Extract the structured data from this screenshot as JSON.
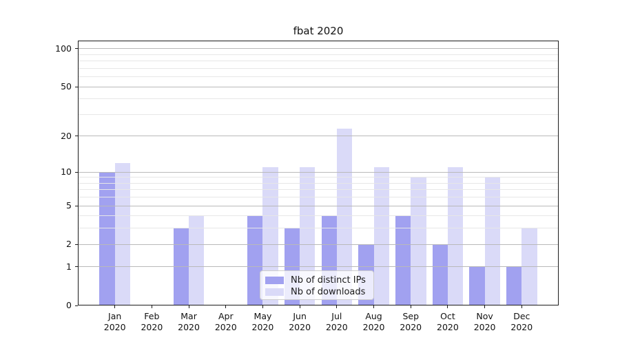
{
  "chart_data": {
    "type": "bar",
    "title": "fbat 2020",
    "categories": [
      "Jan",
      "Feb",
      "Mar",
      "Apr",
      "May",
      "Jun",
      "Jul",
      "Aug",
      "Sep",
      "Oct",
      "Nov",
      "Dec"
    ],
    "category_year": "2020",
    "series": [
      {
        "name": "Nb of distinct IPs",
        "color": "#a1a1f0",
        "values": [
          10,
          0,
          3,
          0,
          4,
          3,
          4,
          2,
          4,
          2,
          1,
          1
        ]
      },
      {
        "name": "Nb of downloads",
        "color": "#dadaf8",
        "values": [
          12,
          0,
          4,
          0,
          11,
          11,
          23,
          11,
          9,
          11,
          9,
          3
        ]
      }
    ],
    "y_scale": "log10(value+1)",
    "y_major_ticks": [
      0,
      1,
      2,
      5,
      10,
      20,
      50,
      100
    ],
    "y_minor_ticks": [
      3,
      4,
      6,
      7,
      8,
      9,
      30,
      40,
      60,
      70,
      80,
      90
    ],
    "ylim": [
      0,
      116
    ],
    "grid": true,
    "legend_position": "lower center",
    "colors": {
      "major_grid": "#b9b9b9",
      "minor_grid": "#e7e7e7",
      "spine": "#1a1a1a",
      "text": "#111111",
      "legend_border": "#cccccc",
      "background": "#ffffff"
    }
  }
}
